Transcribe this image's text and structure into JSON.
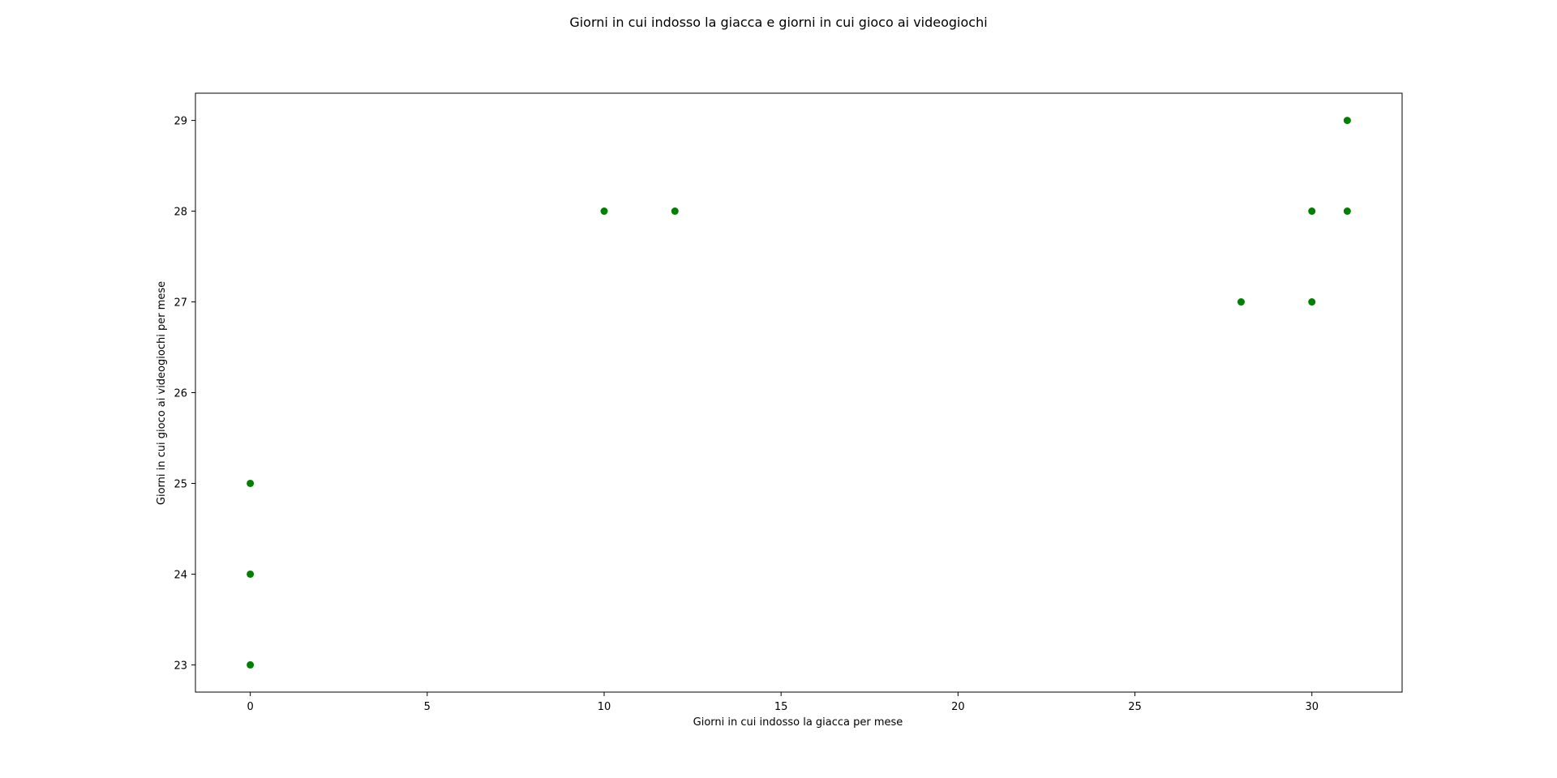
{
  "chart_data": {
    "type": "scatter",
    "title": "Giorni in cui indosso la giacca e giorni in cui gioco ai videogiochi",
    "xlabel": "Giorni in cui indosso la giacca per mese",
    "ylabel": "Giorni in cui gioco ai videogiochi per mese",
    "xlim": [
      -1.55,
      32.55
    ],
    "ylim": [
      22.7,
      29.3
    ],
    "xticks": [
      0,
      5,
      10,
      15,
      20,
      25,
      30
    ],
    "yticks": [
      23,
      24,
      25,
      26,
      27,
      28,
      29
    ],
    "grid": false,
    "legend": "none",
    "marker_color": "#008000",
    "points": [
      {
        "x": 0,
        "y": 23
      },
      {
        "x": 0,
        "y": 24
      },
      {
        "x": 0,
        "y": 25
      },
      {
        "x": 10,
        "y": 28
      },
      {
        "x": 12,
        "y": 28
      },
      {
        "x": 28,
        "y": 27
      },
      {
        "x": 30,
        "y": 27
      },
      {
        "x": 30,
        "y": 28
      },
      {
        "x": 31,
        "y": 28
      },
      {
        "x": 31,
        "y": 29
      }
    ]
  }
}
